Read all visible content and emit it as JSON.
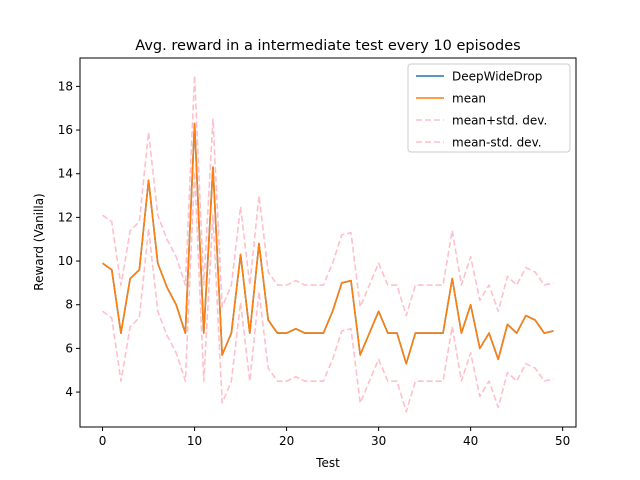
{
  "chart_data": {
    "type": "line",
    "title": "Avg. reward in a intermediate test every 10 episodes",
    "xlabel": "Test",
    "ylabel": "Reward (Vanilla)",
    "xlim": [
      -2.45,
      51.45
    ],
    "ylim": [
      2.4,
      19.3
    ],
    "xticks": [
      0,
      10,
      20,
      30,
      40,
      50
    ],
    "yticks": [
      4,
      6,
      8,
      10,
      12,
      14,
      16,
      18
    ],
    "grid": false,
    "legend_position": "top-right",
    "x": [
      0,
      1,
      2,
      3,
      4,
      5,
      6,
      7,
      8,
      9,
      10,
      11,
      12,
      13,
      14,
      15,
      16,
      17,
      18,
      19,
      20,
      21,
      22,
      23,
      24,
      25,
      26,
      27,
      28,
      29,
      30,
      31,
      32,
      33,
      34,
      35,
      36,
      37,
      38,
      39,
      40,
      41,
      42,
      43,
      44,
      45,
      46,
      47,
      48,
      49
    ],
    "series": [
      {
        "name": "DeepWideDrop",
        "color": "#1f77b4",
        "style": "solid",
        "values": [
          9.9,
          9.6,
          6.7,
          9.2,
          9.6,
          13.7,
          9.9,
          8.8,
          8.0,
          6.7,
          16.3,
          6.7,
          14.3,
          5.7,
          6.7,
          10.3,
          6.7,
          10.8,
          7.3,
          6.7,
          6.7,
          6.9,
          6.7,
          6.7,
          6.7,
          7.7,
          9.0,
          9.1,
          5.7,
          6.7,
          7.7,
          6.7,
          6.7,
          5.3,
          6.7,
          6.7,
          6.7,
          6.7,
          9.2,
          6.7,
          8.0,
          6.0,
          6.7,
          5.5,
          7.1,
          6.7,
          7.5,
          7.3,
          6.7,
          6.8
        ]
      },
      {
        "name": "mean",
        "color": "#ff7f0e",
        "style": "solid",
        "values": [
          9.9,
          9.6,
          6.7,
          9.2,
          9.6,
          13.7,
          9.9,
          8.8,
          8.0,
          6.7,
          16.3,
          6.7,
          14.3,
          5.7,
          6.7,
          10.3,
          6.7,
          10.8,
          7.3,
          6.7,
          6.7,
          6.9,
          6.7,
          6.7,
          6.7,
          7.7,
          9.0,
          9.1,
          5.7,
          6.7,
          7.7,
          6.7,
          6.7,
          5.3,
          6.7,
          6.7,
          6.7,
          6.7,
          9.2,
          6.7,
          8.0,
          6.0,
          6.7,
          5.5,
          7.1,
          6.7,
          7.5,
          7.3,
          6.7,
          6.8
        ]
      },
      {
        "name": "mean+std. dev.",
        "color": "#ffc0cb",
        "style": "dashed",
        "values": [
          12.1,
          11.8,
          8.9,
          11.4,
          11.8,
          15.9,
          12.1,
          11.0,
          10.2,
          8.9,
          18.5,
          8.9,
          16.5,
          7.9,
          8.9,
          12.5,
          8.9,
          13.0,
          9.5,
          8.9,
          8.9,
          9.1,
          8.9,
          8.9,
          8.9,
          9.9,
          11.2,
          11.3,
          7.9,
          8.9,
          9.9,
          8.9,
          8.9,
          7.5,
          8.9,
          8.9,
          8.9,
          8.9,
          11.4,
          8.9,
          10.2,
          8.2,
          8.9,
          7.7,
          9.3,
          8.9,
          9.7,
          9.5,
          8.9,
          9.0
        ]
      },
      {
        "name": "mean-std. dev.",
        "color": "#ffc0cb",
        "style": "dashed",
        "values": [
          7.7,
          7.4,
          4.5,
          7.0,
          7.4,
          11.5,
          7.7,
          6.6,
          5.8,
          4.5,
          14.1,
          4.5,
          12.1,
          3.5,
          4.5,
          8.1,
          4.5,
          8.6,
          5.1,
          4.5,
          4.5,
          4.7,
          4.5,
          4.5,
          4.5,
          5.5,
          6.8,
          6.9,
          3.5,
          4.5,
          5.5,
          4.5,
          4.5,
          3.1,
          4.5,
          4.5,
          4.5,
          4.5,
          7.0,
          4.5,
          5.8,
          3.8,
          4.5,
          3.3,
          4.9,
          4.5,
          5.3,
          5.1,
          4.5,
          4.6
        ]
      }
    ]
  }
}
